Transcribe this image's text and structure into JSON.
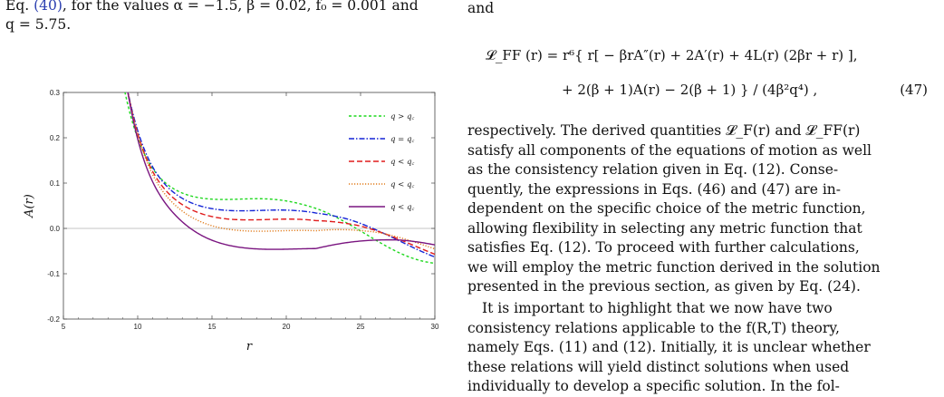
{
  "caption": {
    "text_a": "Eq. ",
    "ref_a": "(40)",
    "text_b": ", for the values α = −1.5, β = 0.02, f₀ = 0.001 and",
    "line2": "q = 5.75."
  },
  "chart_data": {
    "type": "line",
    "xlabel": "r",
    "ylabel": "A(r)",
    "xlim": [
      5,
      30
    ],
    "ylim": [
      -0.2,
      0.3
    ],
    "xticks": [
      "5",
      "10",
      "15",
      "20",
      "25",
      "30"
    ],
    "yticks": [
      "-0.2",
      "-0.1",
      "0.0",
      "0.1",
      "0.2",
      "0.3"
    ],
    "grid": false,
    "legend_position": "top-right",
    "series": [
      {
        "name": "q > q_c",
        "label": "q > q꜀",
        "color": "#1fd81f",
        "dash": "3,2.5",
        "params": {
          "c": 0.0,
          "z": 0.0
        }
      },
      {
        "name": "q = q_c",
        "label": "q = q꜀",
        "color": "#1424d6",
        "dash": "6,2,1.5,2",
        "params": {
          "c": 0.025,
          "z": 2.5
        }
      },
      {
        "name": "q < q_c",
        "label": "q < q꜀",
        "color": "#e01b1b",
        "dash": "6,3",
        "params": {
          "c": 0.045,
          "z": 3.5
        }
      },
      {
        "name": "q < q_c",
        "label": "q < q꜀",
        "color": "#e07b1b",
        "dash": "1.2,1.8",
        "params": {
          "c": 0.07,
          "z": 5.0
        }
      },
      {
        "name": "q < q_c",
        "label": "q < q꜀",
        "color": "#7a1580",
        "dash": "",
        "params": {
          "c": 0.11,
          "z": 7.0
        }
      }
    ]
  },
  "right": {
    "intro": "and",
    "eq47_line1": "𝓛_FF (r) = r⁶{ r[ − βrA″(r) + 2A′(r) + 4L(r) (2βr + r) ],",
    "eq47_line2": "+ 2(β + 1)A(r) − 2(β + 1) } / (4β²q⁴) ,",
    "eq47_num": "(47)",
    "para1": [
      "respectively. The derived quantities 𝓛_F(r) and 𝓛_FF(r)",
      "satisfy all components of the equations of motion as well",
      "as the consistency relation given in Eq. (12). Conse-",
      "quently, the expressions in Eqs. (46) and (47) are in-",
      "dependent on the specific choice of the metric function,",
      "allowing flexibility in selecting any metric function that",
      "satisfies Eq. (12). To proceed with further calculations,",
      "we will employ the metric function derived in the solution",
      "presented in the previous section, as given by Eq. (24)."
    ],
    "para2": [
      "It is important to highlight that we now have two",
      "consistency relations applicable to the f(R,T) theory,",
      "namely Eqs. (11) and (12). Initially, it is unclear whether",
      "these relations will yield distinct solutions when used",
      "individually to develop a specific solution.  In the fol-"
    ]
  }
}
